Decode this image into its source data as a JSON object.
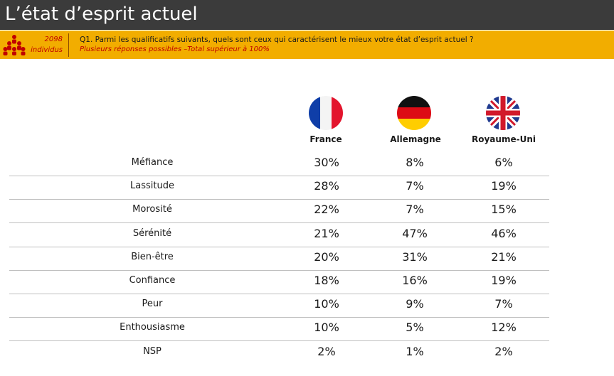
{
  "header": {
    "title": "L’état d’esprit actuel"
  },
  "question": {
    "sample_count": "2098",
    "sample_unit": "individus",
    "text": "Q1. Parmi les qualificatifs suivants, quels sont ceux qui caractérisent le mieux votre état d’esprit actuel ?",
    "note": "Plusieurs réponses possibles –Total supérieur à 100%"
  },
  "columns": [
    {
      "label": "France",
      "flag": "france-flag-icon"
    },
    {
      "label": "Allemagne",
      "flag": "germany-flag-icon"
    },
    {
      "label": "Royaume-Uni",
      "flag": "uk-flag-icon"
    }
  ],
  "rows": [
    {
      "label": "Méfiance",
      "values": [
        "30%",
        "8%",
        "6%"
      ]
    },
    {
      "label": "Lassitude",
      "values": [
        "28%",
        "7%",
        "19%"
      ]
    },
    {
      "label": "Morosité",
      "values": [
        "22%",
        "7%",
        "15%"
      ]
    },
    {
      "label": "Sérénité",
      "values": [
        "21%",
        "47%",
        "46%"
      ]
    },
    {
      "label": "Bien-être",
      "values": [
        "20%",
        "31%",
        "21%"
      ]
    },
    {
      "label": "Confiance",
      "values": [
        "18%",
        "16%",
        "19%"
      ]
    },
    {
      "label": "Peur",
      "values": [
        "10%",
        "9%",
        "7%"
      ]
    },
    {
      "label": "Enthousiasme",
      "values": [
        "10%",
        "5%",
        "12%"
      ]
    },
    {
      "label": "NSP",
      "values": [
        "2%",
        "1%",
        "2%"
      ]
    }
  ],
  "colors": {
    "title_bar": "#3b3b3b",
    "question_bar": "#f2ad00",
    "accent_red": "#c00000"
  }
}
